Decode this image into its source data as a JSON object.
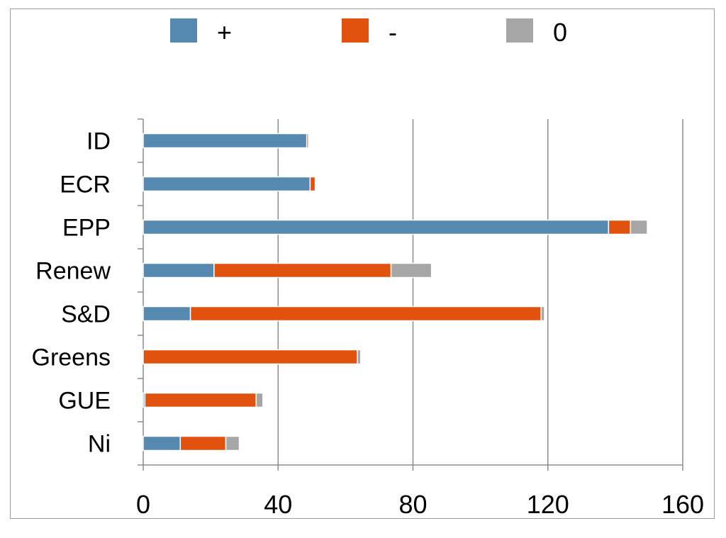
{
  "chart_data": {
    "type": "bar",
    "orientation": "horizontal",
    "stacked": true,
    "title": "",
    "xlabel": "",
    "ylabel": "",
    "categories": [
      "ID",
      "ECR",
      "EPP",
      "Renew",
      "S&D",
      "Greens",
      "GUE",
      "Ni"
    ],
    "series": [
      {
        "name": "+",
        "color": "#5589b0",
        "values": [
          48.5,
          49.5,
          138,
          21,
          14,
          0,
          0.5,
          11
        ]
      },
      {
        "name": "-",
        "color": "#e0520d",
        "values": [
          0.5,
          1.5,
          6.5,
          52.5,
          104,
          63.5,
          33,
          13.5
        ]
      },
      {
        "name": "0",
        "color": "#a6a6a6",
        "values": [
          0,
          0,
          5,
          12,
          1,
          1,
          2,
          4
        ]
      }
    ],
    "xlim": [
      0,
      160
    ],
    "xticks": [
      "0",
      "40",
      "80",
      "120",
      "160"
    ],
    "grid": {
      "vertical": true,
      "horizontal": false
    },
    "legend": {
      "position": "top"
    }
  }
}
